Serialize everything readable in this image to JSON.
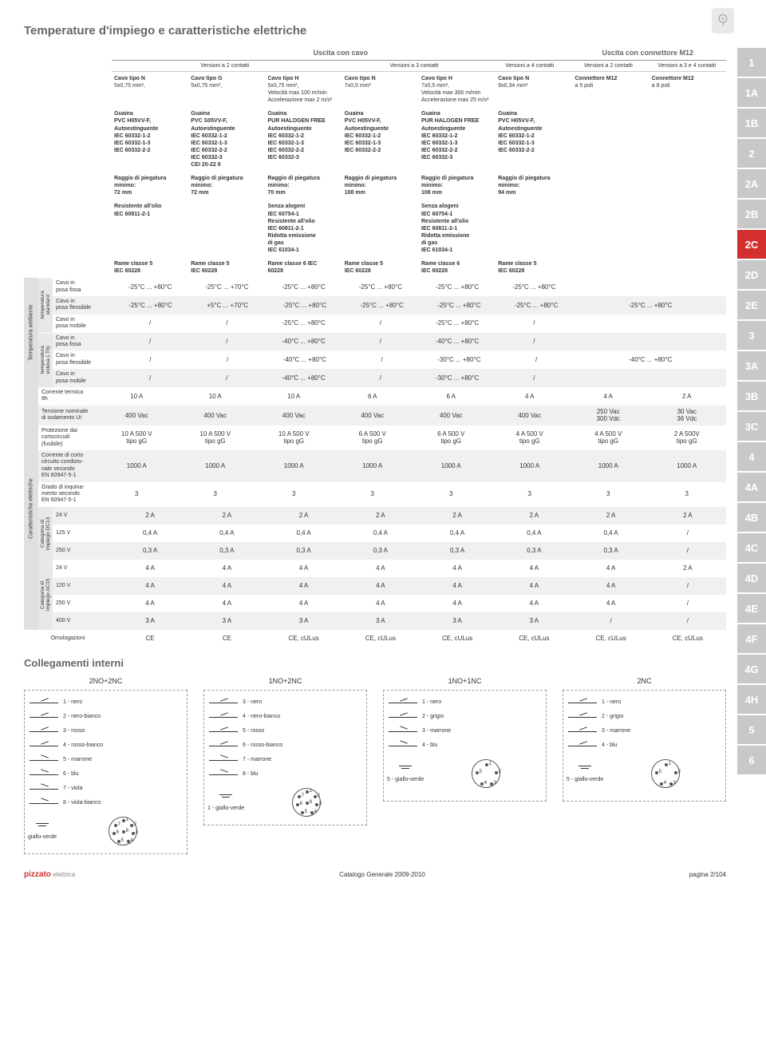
{
  "cornerIcon": "speech-bubble-plus",
  "title": "Temperature d'impiego e caratteristiche elettriche",
  "topGroups": {
    "cable": "Uscita con cavo",
    "connector": "Uscita con connettore M12"
  },
  "subHeaders": [
    "Versioni a 2 contatti",
    "Versioni a 3 contatti",
    "Versioni a 4 contatti",
    "Versioni a 2 contatti",
    "Versioni a 3 e 4 contatti"
  ],
  "cables": [
    {
      "name": "Cavo tipo N",
      "size": "5x0,75 mm²,",
      "extra": "",
      "sheath": "Guaina\nPVC H05VV-F,\nAutoestinguente\nIEC 60332-1-2\nIEC 60332-1-3\nIEC 60332-2-2",
      "bend": "Raggio di piegatura\nminimo:\n72 mm",
      "notes": "Resistente all'olio\nIEC 60811-2-1",
      "copper": "Rame classe 5\nIEC 60228"
    },
    {
      "name": "Cavo tipo G",
      "size": "5x0,75 mm²,",
      "extra": "",
      "sheath": "Guaina\nPVC S05VV-F,\nAutoestinguente\nIEC 60332-1-2\nIEC 60332-1-3\nIEC 60332-2-2\nIEC 60332-3\nCEI 20-22 II",
      "bend": "Raggio di piegatura\nminimo:\n72 mm",
      "notes": "",
      "copper": "Rame classe 5\nIEC 60228"
    },
    {
      "name": "Cavo tipo H",
      "size": "5x0,75 mm²,",
      "extra": "Velocità max 100 m/min\nAccelerazione max 2 m/s²",
      "sheath": "Guaina\nPUR HALOGEN FREE\nAutoestinguente\nIEC 60332-1-2\nIEC 60332-1-3\nIEC 60332-2-2\nIEC 60332-3",
      "bend": "Raggio di piegatura\nminimo:\n70 mm",
      "notes": "Senza alogeni\nIEC 60754-1\nResistente all'olio\nIEC 60811-2-1\nRidotta emissione\ndi gas\nIEC 61034-1",
      "copper": "Rame classe 6 IEC\n60228"
    },
    {
      "name": "Cavo tipo N",
      "size": "7x0,5 mm²",
      "extra": "",
      "sheath": "Guaina\nPVC H05VV-F,\nAutoestinguente\nIEC 60332-1-2\nIEC 60332-1-3\nIEC 60332-2-2",
      "bend": "Raggio di piegatura\nminimo:\n108 mm",
      "notes": "",
      "copper": "Rame classe 5\nIEC 60228"
    },
    {
      "name": "Cavo tipo H",
      "size": "7x0,5 mm²,",
      "extra": "Velocità max 300 m/min\nAccelerazione max 25 m/s²",
      "sheath": "Guaina\nPUR HALOGEN FREE\nAutoestinguente\nIEC 60332-1-2\nIEC 60332-1-3\nIEC 60332-2-2\nIEC 60332-3",
      "bend": "Raggio di piegatura\nminimo:\n108 mm",
      "notes": "Senza alogeni\nIEC 60754-1\nResistente all'olio\nIEC 60811-2-1\nRidotta emissione\ndi gas\nIEC 61034-1",
      "copper": "Rame classe 6\nIEC 60228"
    },
    {
      "name": "Cavo tipo N",
      "size": "9x0,34 mm²",
      "extra": "",
      "sheath": "Guaina\nPVC H05VV-F,\nAutoestinguente\nIEC 60332-1-2\nIEC 60332-1-3\nIEC 60332-2-2",
      "bend": "Raggio di piegatura\nminimo:\n94 mm",
      "notes": "",
      "copper": "Rame classe 5\nIEC 60228"
    },
    {
      "name": "Connettore M12",
      "size": "a 5 poli",
      "extra": "",
      "sheath": "",
      "bend": "",
      "notes": "",
      "copper": ""
    },
    {
      "name": "Connettore M12",
      "size": "a 8 poli",
      "extra": "",
      "sheath": "",
      "bend": "",
      "notes": "",
      "copper": ""
    }
  ],
  "rowGroups": {
    "ambient": "Temperatura ambiente",
    "tempStd": "temperatura\nstandard",
    "tempExt": "temperatura\nestesa (-T6)",
    "elec": "Caratteristiche elettriche",
    "dc13": "Categoria di\nimpiego DC13",
    "ac15": "Categoria di\nimpiego AC15"
  },
  "tempRows": [
    {
      "label": "Cavo in\nposa fissa",
      "values": [
        "-25°C ... +80°C",
        "-25°C ... +70°C",
        "-25°C ... +80°C",
        "-25°C ... +80°C",
        "-25°C ... +80°C",
        "-25°C ... +80°C",
        "",
        ""
      ]
    },
    {
      "label": "Cavo in\nposa flessibile",
      "values": [
        "-25°C ... +80°C",
        "+5°C ... +70°C",
        "-25°C ... +80°C",
        "-25°C ... +80°C",
        "-25°C ... +80°C",
        "-25°C ... +80°C",
        "-25°C ... +80°C",
        ""
      ],
      "merge78": true
    },
    {
      "label": "Cavo in\nposa mobile",
      "values": [
        "/",
        "/",
        "-25°C ... +80°C",
        "/",
        "-25°C ... +80°C",
        "/",
        "",
        ""
      ]
    }
  ],
  "tempExtRows": [
    {
      "label": "Cavo in\nposa fissa",
      "values": [
        "/",
        "/",
        "-40°C ... +80°C",
        "/",
        "-40°C ... +80°C",
        "/",
        "",
        ""
      ]
    },
    {
      "label": "Cavo in\nposa flessibile",
      "values": [
        "/",
        "/",
        "-40°C ... +80°C",
        "/",
        "-30°C ... +80°C",
        "/",
        "-40°C ... +80°C",
        ""
      ],
      "merge78": true
    },
    {
      "label": "Cavo in\nposa mobile",
      "values": [
        "/",
        "/",
        "-40°C ... +80°C",
        "/",
        "-30°C ... +80°C",
        "/",
        "",
        ""
      ]
    }
  ],
  "elecRows": [
    {
      "label": "Corrente termica\nIth",
      "values": [
        "10 A",
        "10 A",
        "10 A",
        "6 A",
        "6 A",
        "4 A",
        "4 A",
        "2 A"
      ]
    },
    {
      "label": "Tensione nominale\ndi isolamento Ui",
      "values": [
        "400 Vac",
        "400 Vac",
        "400 Vac",
        "400 Vac",
        "400 Vac",
        "400 Vac",
        "250 Vac\n300 Vdc",
        "30 Vac\n36 Vdc"
      ]
    },
    {
      "label": "Protezione dai\ncortocircuiti\n(fusibile)",
      "values": [
        "10 A 500 V\ntipo gG",
        "10 A 500 V\ntipo gG",
        "10 A 500 V\ntipo gG",
        "6 A 500 V\ntipo gG",
        "6 A 500 V\ntipo gG",
        "4 A 500 V\ntipo gG",
        "4 A 500 V\ntipo gG",
        "2 A 500V\ntipo gG"
      ]
    },
    {
      "label": "Corrente di corto\ncircuito condizio-\nnale secondo\nEN 60947-5-1",
      "values": [
        "1000 A",
        "1000 A",
        "1000 A",
        "1000 A",
        "1000 A",
        "1000 A",
        "1000 A",
        "1000 A"
      ]
    },
    {
      "label": "Grado di inquina-\nmento secondo\nEN 60947-5-1",
      "values": [
        "3",
        "3",
        "3",
        "3",
        "3",
        "3",
        "3",
        "3"
      ]
    }
  ],
  "dc13Rows": [
    {
      "label": "24 V",
      "values": [
        "2 A",
        "2 A",
        "2 A",
        "2 A",
        "2 A",
        "2 A",
        "2 A",
        "2 A"
      ]
    },
    {
      "label": "125 V",
      "values": [
        "0,4 A",
        "0,4 A",
        "0,4 A",
        "0,4 A",
        "0,4 A",
        "0,4 A",
        "0,4 A",
        "/"
      ]
    },
    {
      "label": "250 V",
      "values": [
        "0,3 A",
        "0,3 A",
        "0,3 A",
        "0,3 A",
        "0,3 A",
        "0,3 A",
        "0,3 A",
        "/"
      ]
    }
  ],
  "ac15Rows": [
    {
      "label": "24 V",
      "values": [
        "4 A",
        "4 A",
        "4 A",
        "4 A",
        "4 A",
        "4 A",
        "4 A",
        "2 A"
      ]
    },
    {
      "label": "120 V",
      "values": [
        "4 A",
        "4 A",
        "4 A",
        "4 A",
        "4 A",
        "4 A",
        "4 A",
        "/"
      ]
    },
    {
      "label": "250 V",
      "values": [
        "4 A",
        "4 A",
        "4 A",
        "4 A",
        "4 A",
        "4 A",
        "4 A",
        "/"
      ]
    },
    {
      "label": "400 V",
      "values": [
        "3 A",
        "3 A",
        "3 A",
        "3 A",
        "3 A",
        "3 A",
        "/",
        "/"
      ]
    }
  ],
  "approvalsLabel": "Omologazioni",
  "approvals": [
    "CE",
    "CE",
    "CE, cULus",
    "CE, cULus",
    "CE, cULus",
    "CE, cULus",
    "CE, cULus",
    "CE, cULus"
  ],
  "wiringTitle": "Collegamenti interni",
  "wiring": [
    {
      "title": "2NO+2NC",
      "wires": [
        {
          "type": "nc",
          "label": "1 - nero"
        },
        {
          "type": "nc",
          "label": "2 - nero-bianco"
        },
        {
          "type": "nc",
          "label": "3 - rosso"
        },
        {
          "type": "nc",
          "label": "4 - rosso-bianco"
        },
        {
          "type": "no",
          "label": "5 - marrone"
        },
        {
          "type": "no",
          "label": "6 - blu"
        },
        {
          "type": "no",
          "label": "7 - viola"
        },
        {
          "type": "no",
          "label": "8 - viola-bianco"
        }
      ],
      "ground": "giallo-verde",
      "pins": 8
    },
    {
      "title": "1NO+2NC",
      "wires": [
        {
          "type": "nc",
          "label": "3 - nero"
        },
        {
          "type": "nc",
          "label": "4 - nero-bianco"
        },
        {
          "type": "nc",
          "label": "5 - rosso"
        },
        {
          "type": "nc",
          "label": "6 - rosso-bianco"
        },
        {
          "type": "no",
          "label": "7 - marrone"
        },
        {
          "type": "no",
          "label": "8 - blu"
        }
      ],
      "ground": "1 - giallo-verde",
      "pins": 8
    },
    {
      "title": "1NO+1NC",
      "wires": [
        {
          "type": "nc",
          "label": "1 - nero"
        },
        {
          "type": "nc",
          "label": "2 - grigio"
        },
        {
          "type": "no",
          "label": "3 - marrone"
        },
        {
          "type": "no",
          "label": "4 - blu"
        }
      ],
      "ground": "5 - giallo-verde",
      "pins": 5
    },
    {
      "title": "2NC",
      "wires": [
        {
          "type": "nc",
          "label": "1 - nero"
        },
        {
          "type": "nc",
          "label": "2 - grigio"
        },
        {
          "type": "nc",
          "label": "3 - marrone"
        },
        {
          "type": "nc",
          "label": "4 - blu"
        }
      ],
      "ground": "5 - giallo-verde",
      "pins": 5
    }
  ],
  "sideTabs": [
    "1",
    "1A",
    "1B",
    "2",
    "2A",
    "2B",
    "2C",
    "2D",
    "2E",
    "3",
    "3A",
    "3B",
    "3C",
    "4",
    "4A",
    "4B",
    "4C",
    "4D",
    "4E",
    "4F",
    "4G",
    "4H",
    "5",
    "6"
  ],
  "activeTab": "2C",
  "footer": {
    "logo": "pizzato",
    "logoSub": "elettrica",
    "center": "Catalogo Generale 2009-2010",
    "page": "pagina 2/104"
  }
}
